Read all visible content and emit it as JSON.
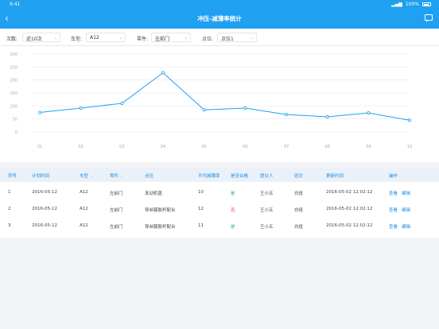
{
  "status_bar": {
    "time": "9:41",
    "battery": "100%"
  },
  "nav": {
    "back_icon": "chevron-left",
    "title": "冲压-减薄率统计",
    "chat_icon": "message-icon"
  },
  "filters": [
    {
      "label": "次数:",
      "value": "近10次"
    },
    {
      "label": "车型:",
      "value": "A12"
    },
    {
      "label": "零件:",
      "value": "左前门"
    },
    {
      "label": "点位:",
      "value": "点位1"
    }
  ],
  "chart_data": {
    "type": "line",
    "categories": [
      "01",
      "02",
      "03",
      "04",
      "05",
      "06",
      "07",
      "08",
      "09",
      "10"
    ],
    "series": [
      {
        "values": [
          75,
          92,
          110,
          228,
          85,
          92,
          67,
          58,
          73,
          45
        ],
        "color": "#1fa0f0"
      }
    ],
    "yticks": [
      0,
      50,
      100,
      150,
      200,
      250,
      300
    ],
    "ylim": [
      0,
      300
    ],
    "grid": true
  },
  "table": {
    "headers": [
      "序号",
      "计划时间",
      "车型",
      "零件",
      "点位",
      "平均减薄率",
      "是否合格",
      "提交人",
      "班次",
      "更新时间",
      "操作"
    ],
    "sortable": [
      false,
      false,
      true,
      true,
      false,
      false,
      false,
      false,
      false,
      false,
      false
    ],
    "rows": [
      {
        "no": "1",
        "plan_time": "2016-05-12",
        "model": "A12",
        "part": "左前门",
        "point": "发动机盖",
        "avg": "10",
        "qualified": "是",
        "qualified_ok": true,
        "submitter": "王小五",
        "shift": "白班",
        "updated": "2016-05-02 12:02:12",
        "view": "查看",
        "edit": "编辑"
      },
      {
        "no": "2",
        "plan_time": "2016-05-12",
        "model": "A12",
        "part": "左前门",
        "point": "导丝膜胶杆配合",
        "avg": "12",
        "qualified": "否",
        "qualified_ok": false,
        "submitter": "王小五",
        "shift": "白班",
        "updated": "2016-05-02 12:02:12",
        "view": "查看",
        "edit": "编辑"
      },
      {
        "no": "3",
        "plan_time": "2016-05-12",
        "model": "A12",
        "part": "左前门",
        "point": "导丝膜胶杆配合",
        "avg": "11",
        "qualified": "是",
        "qualified_ok": true,
        "submitter": "王小五",
        "shift": "白班",
        "updated": "2016-05-02 12:02:12",
        "view": "查看",
        "edit": "编辑"
      }
    ]
  }
}
